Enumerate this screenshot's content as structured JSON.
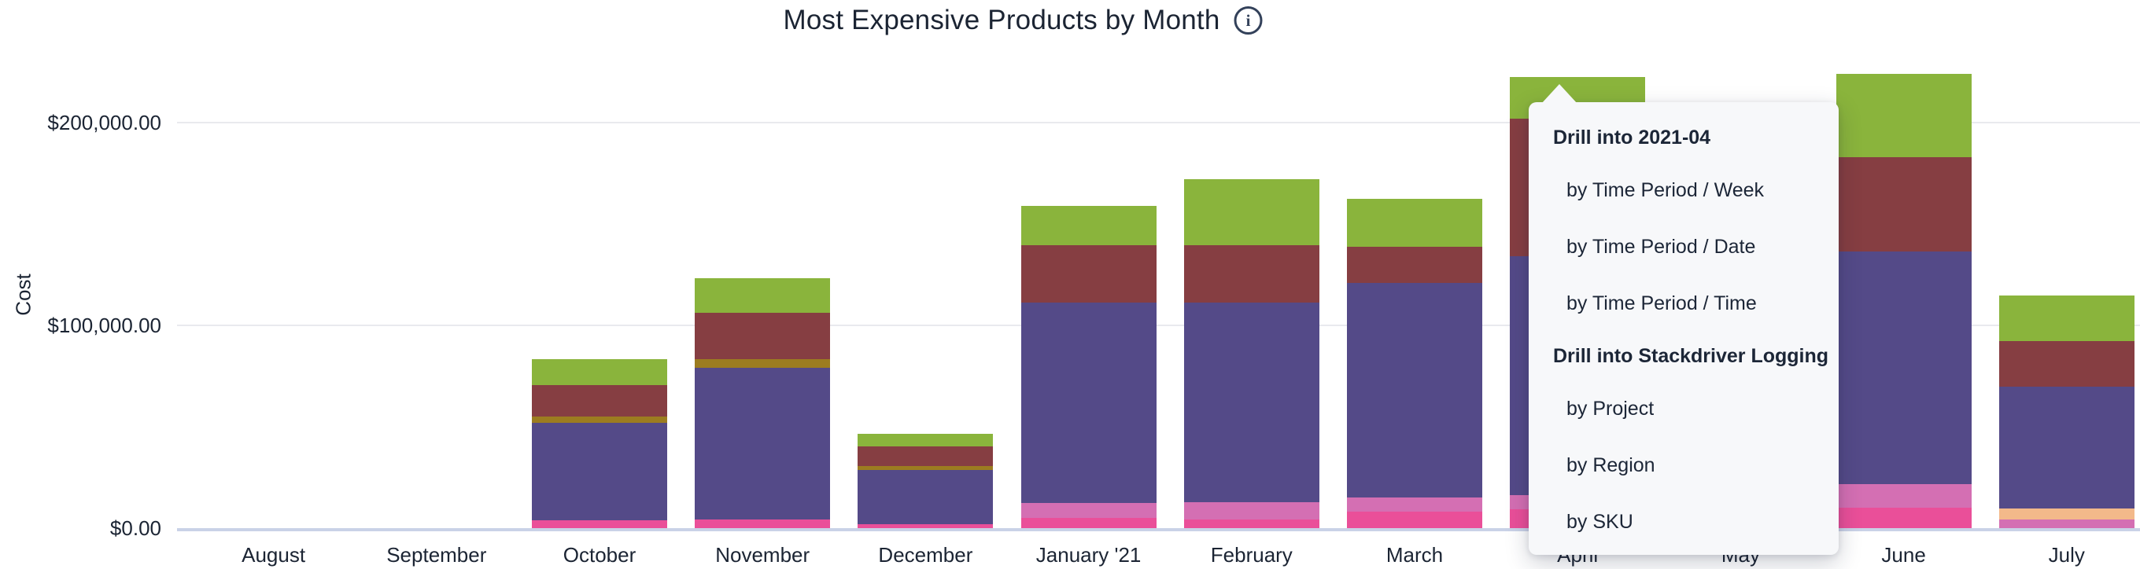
{
  "title": {
    "text": "Most Expensive Products by Month",
    "info_icon_glyph": "i"
  },
  "y_axis": {
    "label": "Cost",
    "ticks": [
      "$0.00",
      "$100,000.00",
      "$200,000.00"
    ]
  },
  "x_axis": {
    "labels": [
      "August",
      "September",
      "October",
      "November",
      "December",
      "January '21",
      "February",
      "March",
      "April",
      "May",
      "June",
      "July"
    ]
  },
  "menu": {
    "sections": [
      {
        "header": "Drill into 2021-04",
        "items": [
          "by Time Period / Week",
          "by Time Period / Date",
          "by Time Period / Time"
        ]
      },
      {
        "header": "Drill into Stackdriver Logging",
        "items": [
          "by Project",
          "by Region",
          "by SKU"
        ]
      }
    ]
  },
  "chart_data": {
    "type": "bar",
    "stacked": true,
    "title": "Most Expensive Products by Month",
    "xlabel": "",
    "ylabel": "Cost",
    "ylim": [
      0,
      230000
    ],
    "y_ticks": [
      0,
      100000,
      200000
    ],
    "grid": true,
    "legend": "none",
    "categories": [
      "August",
      "September",
      "October",
      "November",
      "December",
      "January '21",
      "February",
      "March",
      "April",
      "May",
      "June",
      "July"
    ],
    "series": [
      {
        "name": "hot-pink-series",
        "color": "#ea4f99",
        "values": [
          0,
          0,
          3900,
          4300,
          1900,
          5000,
          4300,
          8100,
          9300,
          null,
          10100,
          0
        ]
      },
      {
        "name": "orchid-pink-series",
        "color": "#d46fb3",
        "values": [
          0,
          0,
          0,
          0,
          0,
          7400,
          8500,
          7000,
          7000,
          null,
          11600,
          4300
        ]
      },
      {
        "name": "peach-series",
        "color": "#f3b98a",
        "values": [
          0,
          0,
          0,
          0,
          0,
          0,
          0,
          0,
          0,
          null,
          0,
          5400
        ]
      },
      {
        "name": "purple-series",
        "color": "#544a88",
        "values": [
          0,
          0,
          48100,
          74800,
          26700,
          98800,
          98400,
          105800,
          117800,
          null,
          114700,
          60100
        ]
      },
      {
        "name": "olive-series",
        "color": "#9c7c20",
        "values": [
          0,
          0,
          3100,
          4300,
          1900,
          0,
          0,
          0,
          0,
          null,
          0,
          0
        ]
      },
      {
        "name": "maroon-series",
        "color": "#863e42",
        "values": [
          0,
          0,
          15500,
          22900,
          9700,
          28300,
          28300,
          17800,
          67800,
          null,
          46500,
          22500
        ]
      },
      {
        "name": "green-series",
        "color": "#8ab43c",
        "values": [
          0,
          0,
          12800,
          17100,
          6200,
          19400,
          32600,
          23600,
          20500,
          null,
          41100,
          22500
        ]
      }
    ],
    "annotations": [
      "May bar fully hidden behind open drill-down menu; drill menu anchored to top of April bar"
    ]
  }
}
